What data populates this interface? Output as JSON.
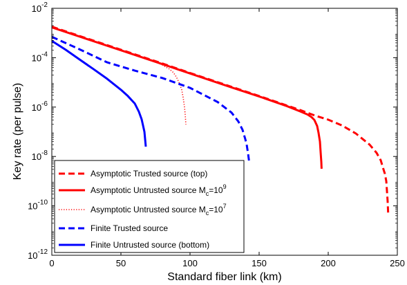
{
  "chart_data": {
    "type": "line",
    "xlabel": "Standard fiber link (km)",
    "ylabel": "Key rate (per pulse)",
    "xlim": [
      0,
      250
    ],
    "ylim_log10": [
      -12,
      -2
    ],
    "yscale": "log",
    "x_ticks": [
      "0",
      "50",
      "100",
      "150",
      "200",
      "250"
    ],
    "y_ticks": [
      {
        "base": "10",
        "exp": "-12"
      },
      {
        "base": "10",
        "exp": "-10"
      },
      {
        "base": "10",
        "exp": "-8"
      },
      {
        "base": "10",
        "exp": "-6"
      },
      {
        "base": "10",
        "exp": "-4"
      },
      {
        "base": "10",
        "exp": "-2"
      }
    ],
    "grid": false,
    "legend_position": "bottom-left",
    "series": [
      {
        "name": "Asymptotic Trusted source (top)",
        "legend": {
          "pre": "Asymptotic Trusted source (top)",
          "sub": "",
          "mid": "",
          "sup": ""
        },
        "color": "#ff0000",
        "style": "dashed",
        "points": [
          [
            0,
            0.0018
          ],
          [
            20,
            0.00076
          ],
          [
            50,
            0.00021
          ],
          [
            80,
            5.8e-05
          ],
          [
            100,
            2.4e-05
          ],
          [
            130,
            6.6e-06
          ],
          [
            150,
            2.8e-06
          ],
          [
            180,
            7.5e-07
          ],
          [
            190,
            4.6e-07
          ],
          [
            200,
            3.1e-07
          ],
          [
            210,
            1.8e-07
          ],
          [
            220,
            8.5e-08
          ],
          [
            230,
            3e-08
          ],
          [
            235,
            1.4e-08
          ],
          [
            238,
            7e-09
          ],
          [
            240,
            3e-09
          ],
          [
            241,
            2e-09
          ],
          [
            242,
            1e-09
          ],
          [
            242.5,
            4e-10
          ],
          [
            243,
            1.5e-10
          ],
          [
            243.3,
            6e-11
          ],
          [
            243.5,
            4e-11
          ]
        ]
      },
      {
        "name": "Asymptotic Untrusted source M_c=10^9",
        "legend": {
          "pre": "Asymptotic Untrusted source M",
          "sub": "c",
          "mid": "=10",
          "sup": "9"
        },
        "color": "#ff0000",
        "style": "solid",
        "points": [
          [
            0,
            0.0017
          ],
          [
            20,
            0.00072
          ],
          [
            50,
            0.0002
          ],
          [
            80,
            5.5e-05
          ],
          [
            100,
            2.3e-05
          ],
          [
            130,
            6.3e-06
          ],
          [
            150,
            2.7e-06
          ],
          [
            170,
            1.1e-06
          ],
          [
            180,
            6.6e-07
          ],
          [
            185,
            5e-07
          ],
          [
            188,
            3.9e-07
          ],
          [
            190,
            3e-07
          ],
          [
            192,
            1.7e-07
          ],
          [
            193,
            9e-08
          ],
          [
            194,
            4e-08
          ],
          [
            194.5,
            1.5e-08
          ],
          [
            195,
            6e-09
          ],
          [
            195.2,
            3.2e-09
          ]
        ]
      },
      {
        "name": "Asymptotic Untrusted source M_c=10^7",
        "legend": {
          "pre": "Asymptotic Untrusted source M",
          "sub": "c",
          "mid": "=10",
          "sup": "7"
        },
        "color": "#ff0000",
        "style": "dotted",
        "points": [
          [
            70,
            9e-05
          ],
          [
            75,
            7e-05
          ],
          [
            80,
            5e-05
          ],
          [
            85,
            3.5e-05
          ],
          [
            88,
            2.5e-05
          ],
          [
            90,
            1.7e-05
          ],
          [
            92,
            1e-05
          ],
          [
            94,
            5e-06
          ],
          [
            95,
            2.5e-06
          ],
          [
            96,
            1e-06
          ],
          [
            96.5,
            5e-07
          ],
          [
            97,
            2e-07
          ]
        ]
      },
      {
        "name": "Finite Trusted source",
        "legend": {
          "pre": "Finite Trusted source",
          "sub": "",
          "mid": "",
          "sup": ""
        },
        "color": "#0000ff",
        "style": "dashed",
        "points": [
          [
            0,
            0.0007
          ],
          [
            20,
            0.00022
          ],
          [
            40,
            6.5e-05
          ],
          [
            60,
            3e-05
          ],
          [
            80,
            1.5e-05
          ],
          [
            100,
            6e-06
          ],
          [
            120,
            1.6e-06
          ],
          [
            130,
            6e-07
          ],
          [
            135,
            2.6e-07
          ],
          [
            138,
            1.2e-07
          ],
          [
            140,
            5e-08
          ],
          [
            141,
            3e-08
          ],
          [
            142,
            1.3e-08
          ],
          [
            142.5,
            8e-09
          ],
          [
            143,
            5e-09
          ]
        ]
      },
      {
        "name": "Finite Untrusted source (bottom)",
        "legend": {
          "pre": "Finite Untrusted source (bottom)",
          "sub": "",
          "mid": "",
          "sup": ""
        },
        "color": "#0000ff",
        "style": "solid",
        "points": [
          [
            0,
            0.00048
          ],
          [
            10,
            0.00021
          ],
          [
            20,
            8.5e-05
          ],
          [
            30,
            3.5e-05
          ],
          [
            40,
            1.4e-05
          ],
          [
            50,
            5e-06
          ],
          [
            55,
            2.8e-06
          ],
          [
            60,
            1.4e-06
          ],
          [
            63,
            6.5e-07
          ],
          [
            65,
            3.2e-07
          ],
          [
            66,
            1.8e-07
          ],
          [
            67,
            1e-07
          ],
          [
            67.5,
            5e-08
          ],
          [
            68,
            2.5e-08
          ]
        ]
      }
    ]
  }
}
